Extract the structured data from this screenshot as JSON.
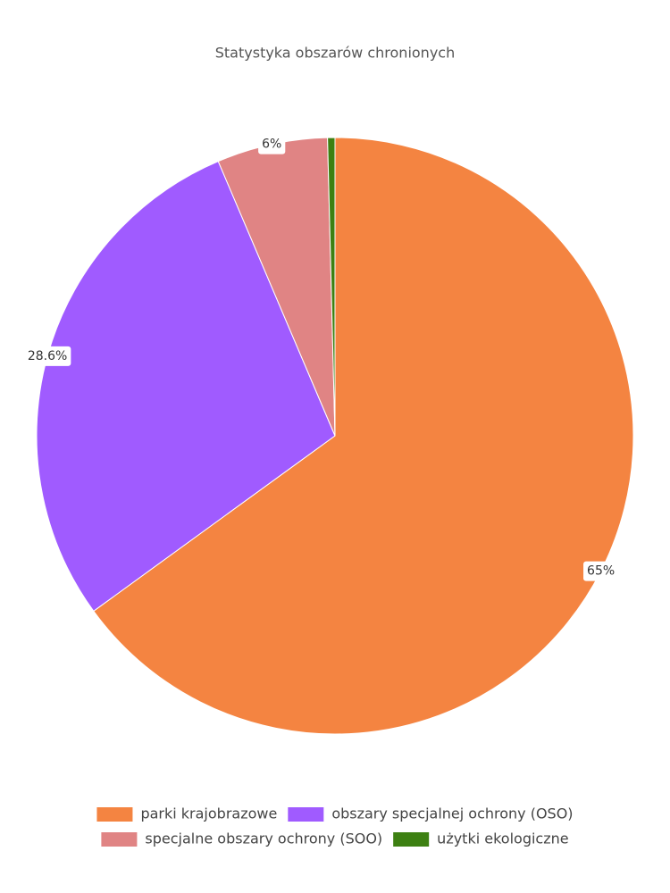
{
  "chart_data": {
    "type": "pie",
    "title": "Statystyka obszarów chronionych",
    "categories": [
      "parki krajobrazowe",
      "obszary specjalnej ochrony (OSO)",
      "specjalne obszary ochrony (SOO)",
      "użytki ekologiczne"
    ],
    "values": [
      65,
      28.6,
      6,
      0.4
    ],
    "value_labels": [
      "65%",
      "28.6%",
      "6%",
      null
    ],
    "colors": [
      "#f48441",
      "#a05bff",
      "#e08484",
      "#3d8012"
    ],
    "legend": "bottom"
  }
}
